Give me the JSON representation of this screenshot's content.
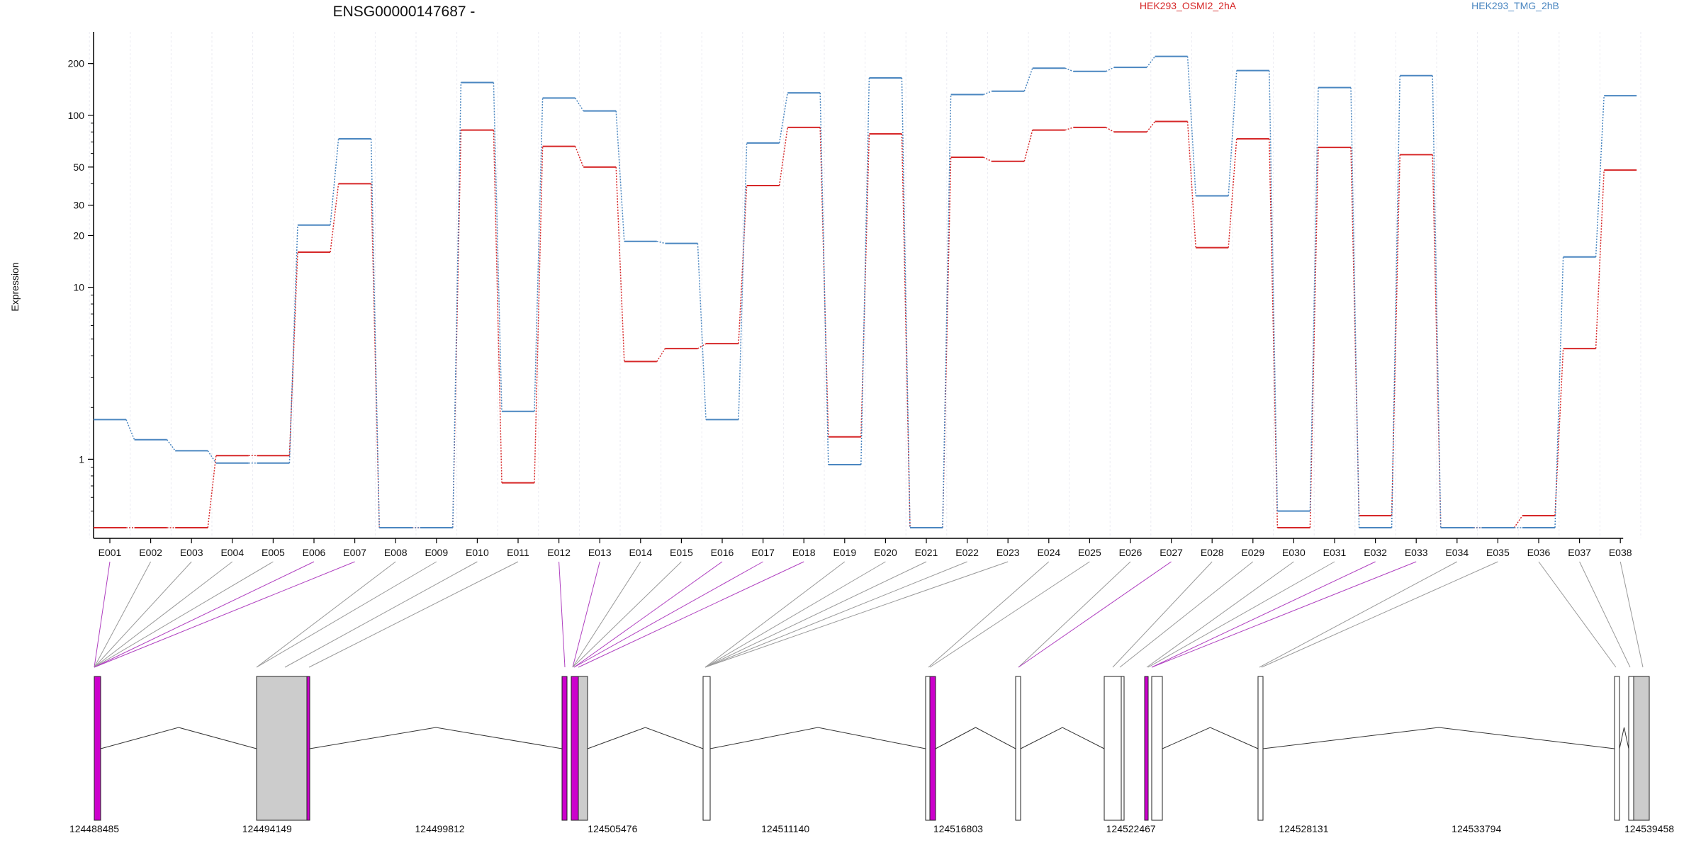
{
  "chart_data": {
    "type": "line",
    "title": "ENSG00000147687 -",
    "ylabel": "Expression",
    "yscale": "log",
    "ylim": [
      0.4,
      260
    ],
    "yticks": [
      "1",
      "10",
      "20",
      "30",
      "50",
      "100",
      "200"
    ],
    "grid": "vertical",
    "legend_position": "top",
    "categories": [
      "E001",
      "E002",
      "E003",
      "E004",
      "E005",
      "E006",
      "E007",
      "E008",
      "E009",
      "E010",
      "E011",
      "E012",
      "E013",
      "E014",
      "E015",
      "E016",
      "E017",
      "E018",
      "E019",
      "E020",
      "E021",
      "E022",
      "E023",
      "E024",
      "E025",
      "E026",
      "E027",
      "E028",
      "E029",
      "E030",
      "E031",
      "E032",
      "E033",
      "E034",
      "E035",
      "E036",
      "E037",
      "E038"
    ],
    "series": [
      {
        "name": "HEK293_OSMI2_2hA",
        "color": "#d62728",
        "values": [
          0.4,
          0.4,
          0.4,
          1.05,
          1.05,
          16,
          40,
          0.4,
          0.4,
          82,
          0.73,
          66,
          50,
          3.7,
          4.4,
          4.7,
          39,
          85,
          1.35,
          78,
          0.4,
          57,
          54,
          82,
          85,
          80,
          92,
          17,
          73,
          0.4,
          65,
          0.47,
          59,
          0.4,
          0.4,
          0.47,
          4.4,
          48
        ]
      },
      {
        "name": "HEK293_TMG_2hB",
        "color": "#4a86c0",
        "values": [
          1.7,
          1.3,
          1.12,
          0.95,
          0.95,
          23,
          73,
          0.4,
          0.4,
          155,
          1.9,
          126,
          106,
          18.5,
          18,
          1.7,
          69,
          135,
          0.93,
          165,
          0.4,
          132,
          138,
          188,
          180,
          190,
          220,
          34,
          182,
          0.5,
          145,
          0.4,
          170,
          0.4,
          0.4,
          0.4,
          15,
          130
        ]
      }
    ],
    "gene_model": {
      "coordinate_labels": [
        "124488485",
        "124494149",
        "124499812",
        "124505476",
        "124511140",
        "124516803",
        "124522467",
        "124528131",
        "124533794",
        "124539458"
      ],
      "coordinate_range": [
        124488485,
        124539458
      ],
      "highlight_color": "#cc00cc",
      "exon_fill": "#cccccc",
      "highlighted_exons": [
        "E001",
        "E006",
        "E007",
        "E012",
        "E013",
        "E016",
        "E017",
        "E018",
        "E027",
        "E032",
        "E033"
      ]
    }
  }
}
